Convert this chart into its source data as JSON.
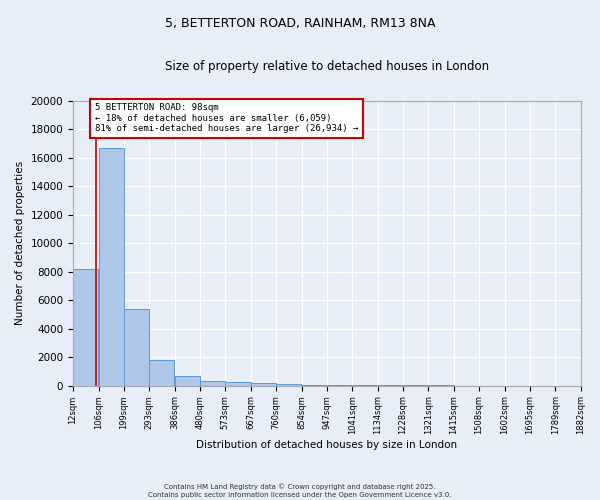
{
  "title1": "5, BETTERTON ROAD, RAINHAM, RM13 8NA",
  "title2": "Size of property relative to detached houses in London",
  "xlabel": "Distribution of detached houses by size in London",
  "ylabel": "Number of detached properties",
  "annotation_line1": "5 BETTERTON ROAD: 98sqm",
  "annotation_line2": "← 18% of detached houses are smaller (6,059)",
  "annotation_line3": "81% of semi-detached houses are larger (26,934) →",
  "property_size": 98,
  "bar_left_edges": [
    12,
    106,
    199,
    293,
    386,
    480,
    573,
    667,
    760,
    854,
    947,
    1041,
    1134,
    1228,
    1321,
    1415,
    1508,
    1602,
    1695,
    1789
  ],
  "bar_widths": [
    94,
    93,
    94,
    93,
    94,
    93,
    94,
    93,
    94,
    93,
    94,
    93,
    94,
    93,
    94,
    93,
    94,
    93,
    94,
    93
  ],
  "bar_heights": [
    8200,
    16700,
    5400,
    1800,
    700,
    350,
    250,
    150,
    80,
    50,
    30,
    20,
    15,
    10,
    8,
    5,
    4,
    3,
    2,
    1
  ],
  "bar_color": "#aec6e8",
  "bar_edge_color": "#5b9bd5",
  "red_line_color": "#cc0000",
  "annotation_box_color": "#cc0000",
  "fig_background": "#e8eef7",
  "ax_background": "#e8eef7",
  "grid_color": "#ffffff",
  "xlim_min": 12,
  "xlim_max": 1882,
  "ylim_min": 0,
  "ylim_max": 20000,
  "yticks": [
    0,
    2000,
    4000,
    6000,
    8000,
    10000,
    12000,
    14000,
    16000,
    18000,
    20000
  ],
  "xtick_labels": [
    "12sqm",
    "106sqm",
    "199sqm",
    "293sqm",
    "386sqm",
    "480sqm",
    "573sqm",
    "667sqm",
    "760sqm",
    "854sqm",
    "947sqm",
    "1041sqm",
    "1134sqm",
    "1228sqm",
    "1321sqm",
    "1415sqm",
    "1508sqm",
    "1602sqm",
    "1695sqm",
    "1789sqm",
    "1882sqm"
  ],
  "xtick_positions": [
    12,
    106,
    199,
    293,
    386,
    480,
    573,
    667,
    760,
    854,
    947,
    1041,
    1134,
    1228,
    1321,
    1415,
    1508,
    1602,
    1695,
    1789,
    1882
  ],
  "footer_line1": "Contains HM Land Registry data © Crown copyright and database right 2025.",
  "footer_line2": "Contains public sector information licensed under the Open Government Licence v3.0."
}
